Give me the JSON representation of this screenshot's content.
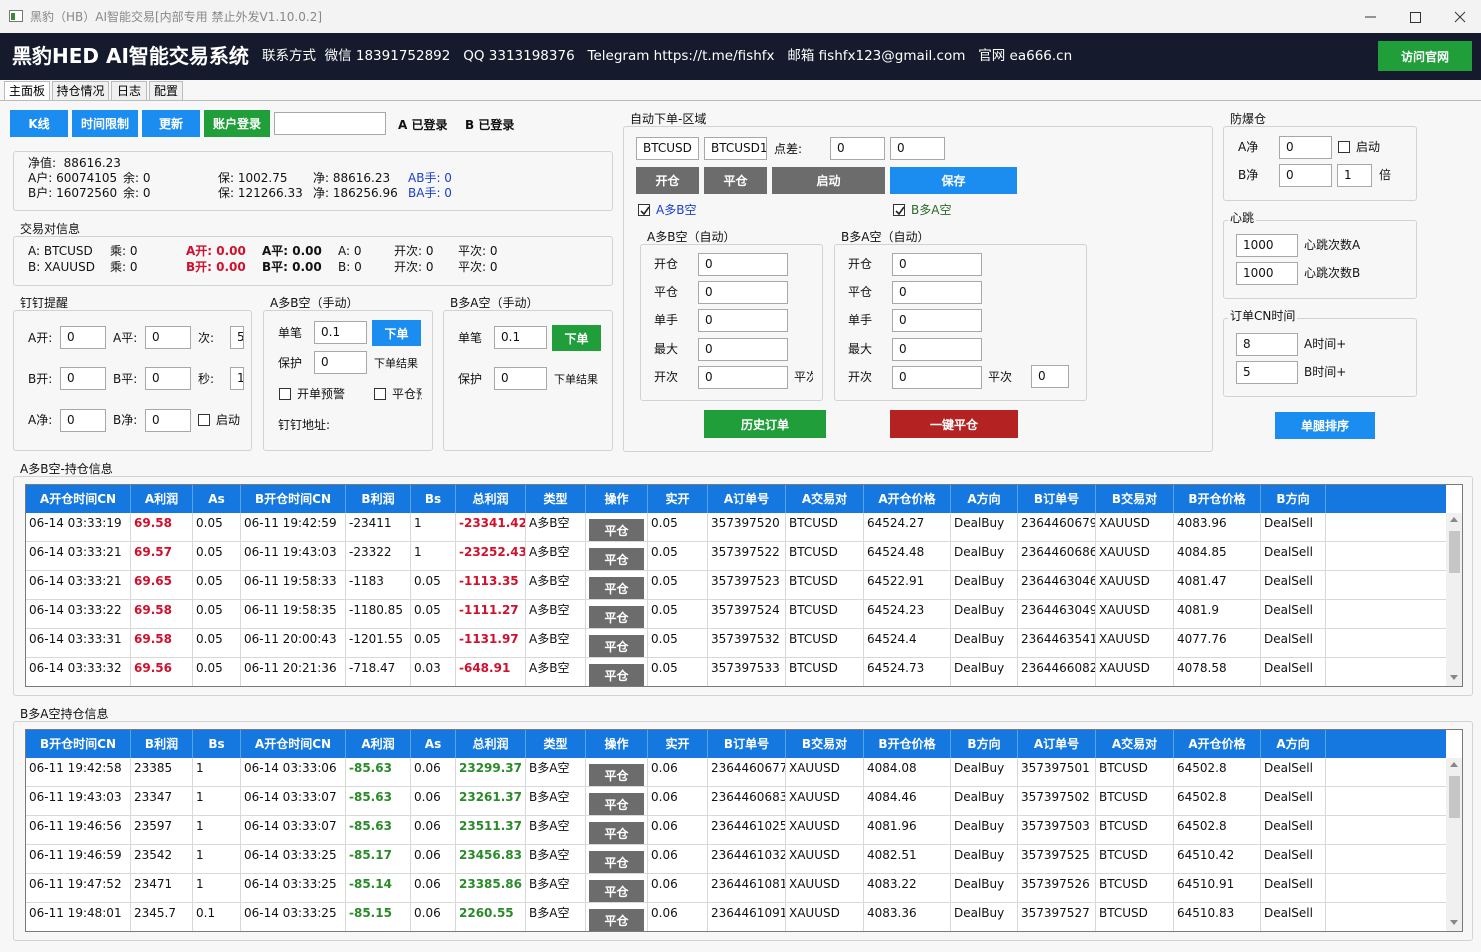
{
  "window": {
    "title": "黑豹（HB）AI智能交易[内部专用 禁止外发V1.10.0.2]"
  },
  "header": {
    "title": "黑豹HED AI智能交易系统",
    "contact": "联系方式  微信 18391752892   QQ 3313198376   Telegram https://t.me/fishfx   邮箱 fishfx123@gmail.com   官网 ea666.cn",
    "button": "访问官网"
  },
  "tabs": [
    "主面板",
    "持仓情况",
    "日志",
    "配置"
  ],
  "toolbar": {
    "buttons": [
      "K线",
      "时间限制",
      "更新",
      "账户登录"
    ],
    "status_a": "A 已登录",
    "status_b": "B 已登录"
  },
  "account": {
    "net": "净值:  88616.23",
    "rows": [
      [
        "A户: 60074105",
        "余: 0",
        "保: 1002.75",
        "净: 88616.23",
        "AB手: 0"
      ],
      [
        "B户: 16072560",
        "余: 0",
        "保: 121266.33",
        "净: 186256.96",
        "BA手: 0"
      ]
    ]
  },
  "pair_info": {
    "title": "交易对信息",
    "rows": [
      [
        "A: BTCUSD",
        "乘: 0",
        "A开: 0.00",
        "A平: 0.00",
        "A: 0",
        "开次: 0",
        "平次: 0"
      ],
      [
        "B: XAUUSD",
        "乘: 0",
        "B开: 0.00",
        "B平: 0.00",
        "B: 0",
        "开次: 0",
        "平次: 0"
      ]
    ]
  },
  "dingding": {
    "title": "钉钉提醒",
    "fields": [
      {
        "label": "A开:",
        "value": "0"
      },
      {
        "label": "A平:",
        "value": "0"
      },
      {
        "label": "次:",
        "value": "5"
      },
      {
        "label": "B开:",
        "value": "0"
      },
      {
        "label": "B平:",
        "value": "0"
      },
      {
        "label": "秒:",
        "value": "1"
      },
      {
        "label": "A净:",
        "value": "0"
      },
      {
        "label": "B净:",
        "value": "0"
      }
    ],
    "check": "启动"
  },
  "manual_ab": {
    "title": "A多B空（手动）",
    "lot_label": "单笔",
    "lot": "0.1",
    "button": "下单",
    "protect_label": "保护",
    "protect": "0",
    "result_label": "下单结果",
    "check1": "开单预警",
    "check2": "平仓预",
    "address_label": "钉钉地址:"
  },
  "manual_ba": {
    "title": "B多A空（手动）",
    "lot_label": "单笔",
    "lot": "0.1",
    "button": "下单",
    "protect_label": "保护",
    "protect": "0",
    "result_label": "下单结果"
  },
  "auto": {
    "title": "自动下单-区域",
    "symbol_a": "BTCUSD",
    "symbol_b": "BTCUSD1",
    "spread_label": "点差:",
    "spread1": "0",
    "spread2": "0",
    "buttons": [
      "开仓",
      "平仓",
      "启动",
      "保存"
    ],
    "check_ab": "A多B空",
    "check_ba": "B多A空",
    "ab": {
      "title": "A多B空（自动）",
      "fields": [
        {
          "label": "开仓",
          "value": "0"
        },
        {
          "label": "平仓",
          "value": "0"
        },
        {
          "label": "单手",
          "value": "0"
        },
        {
          "label": "最大",
          "value": "0"
        },
        {
          "label": "开次",
          "value": "0"
        }
      ],
      "extra_label": "平次"
    },
    "ba": {
      "title": "B多A空（自动）",
      "fields": [
        {
          "label": "开仓",
          "value": "0"
        },
        {
          "label": "平仓",
          "value": "0"
        },
        {
          "label": "单手",
          "value": "0"
        },
        {
          "label": "最大",
          "value": "0"
        },
        {
          "label": "开次",
          "value": "0"
        }
      ],
      "extra_label": "平次",
      "extra_value": "0"
    },
    "history": "历史订单",
    "close_all": "一键平仓"
  },
  "anti": {
    "title": "防爆仓",
    "a_label": "A净",
    "a": "0",
    "start": "启动",
    "b_label": "B净",
    "b": "0",
    "mult": "1",
    "mult_label": "倍"
  },
  "heartbeat": {
    "title": "心跳",
    "rows": [
      {
        "value": "1000",
        "label": "心跳次数A"
      },
      {
        "value": "1000",
        "label": "心跳次数B"
      }
    ]
  },
  "cn_time": {
    "title": "订单CN时间",
    "rows": [
      {
        "value": "8",
        "label": "A时间+"
      },
      {
        "value": "5",
        "label": "B时间+"
      }
    ]
  },
  "sort_button": "单腿排序",
  "table_ab": {
    "title": "A多B空-持仓信息",
    "headers": [
      "A开仓时间CN",
      "A利润",
      "As",
      "B开仓时间CN",
      "B利润",
      "Bs",
      "总利润",
      "类型",
      "操作",
      "实开",
      "A订单号",
      "A交易对",
      "A开仓价格",
      "A方向",
      "B订单号",
      "B交易对",
      "B开仓价格",
      "B方向"
    ],
    "rows": [
      [
        "06-14 03:33:19",
        "69.58",
        "0.05",
        "06-11 19:42:59",
        "-23411",
        "1",
        "-23341.42",
        "A多B空",
        "平仓",
        "0.05",
        "357397520",
        "BTCUSD",
        "64524.27",
        "DealBuy",
        "2364460679",
        "XAUUSD",
        "4083.96",
        "DealSell"
      ],
      [
        "06-14 03:33:21",
        "69.57",
        "0.05",
        "06-11 19:43:03",
        "-23322",
        "1",
        "-23252.43",
        "A多B空",
        "平仓",
        "0.05",
        "357397522",
        "BTCUSD",
        "64524.48",
        "DealBuy",
        "2364460686",
        "XAUUSD",
        "4084.85",
        "DealSell"
      ],
      [
        "06-14 03:33:21",
        "69.65",
        "0.05",
        "06-11 19:58:33",
        "-1183",
        "0.05",
        "-1113.35",
        "A多B空",
        "平仓",
        "0.05",
        "357397523",
        "BTCUSD",
        "64522.91",
        "DealBuy",
        "2364463046",
        "XAUUSD",
        "4081.47",
        "DealSell"
      ],
      [
        "06-14 03:33:22",
        "69.58",
        "0.05",
        "06-11 19:58:35",
        "-1180.85",
        "0.05",
        "-1111.27",
        "A多B空",
        "平仓",
        "0.05",
        "357397524",
        "BTCUSD",
        "64524.23",
        "DealBuy",
        "2364463049",
        "XAUUSD",
        "4081.9",
        "DealSell"
      ],
      [
        "06-14 03:33:31",
        "69.58",
        "0.05",
        "06-11 20:00:43",
        "-1201.55",
        "0.05",
        "-1131.97",
        "A多B空",
        "平仓",
        "0.05",
        "357397532",
        "BTCUSD",
        "64524.4",
        "DealBuy",
        "2364463541",
        "XAUUSD",
        "4077.76",
        "DealSell"
      ],
      [
        "06-14 03:33:32",
        "69.56",
        "0.05",
        "06-11 20:21:36",
        "-718.47",
        "0.03",
        "-648.91",
        "A多B空",
        "平仓",
        "0.05",
        "357397533",
        "BTCUSD",
        "64524.73",
        "DealBuy",
        "2364466082",
        "XAUUSD",
        "4078.58",
        "DealSell"
      ]
    ]
  },
  "table_ba": {
    "title": "B多A空持仓信息",
    "headers": [
      "B开仓时间CN",
      "B利润",
      "Bs",
      "A开仓时间CN",
      "A利润",
      "As",
      "总利润",
      "类型",
      "操作",
      "实开",
      "B订单号",
      "B交易对",
      "B开仓价格",
      "B方向",
      "A订单号",
      "A交易对",
      "A开仓价格",
      "A方向"
    ],
    "rows": [
      [
        "06-11 19:42:58",
        "23385",
        "1",
        "06-14 03:33:06",
        "-85.63",
        "0.06",
        "23299.37",
        "B多A空",
        "平仓",
        "0.06",
        "2364460677",
        "XAUUSD",
        "4084.08",
        "DealBuy",
        "357397501",
        "BTCUSD",
        "64502.8",
        "DealSell"
      ],
      [
        "06-11 19:43:03",
        "23347",
        "1",
        "06-14 03:33:07",
        "-85.63",
        "0.06",
        "23261.37",
        "B多A空",
        "平仓",
        "0.06",
        "2364460683",
        "XAUUSD",
        "4084.46",
        "DealBuy",
        "357397502",
        "BTCUSD",
        "64502.8",
        "DealSell"
      ],
      [
        "06-11 19:46:56",
        "23597",
        "1",
        "06-14 03:33:07",
        "-85.63",
        "0.06",
        "23511.37",
        "B多A空",
        "平仓",
        "0.06",
        "2364461025",
        "XAUUSD",
        "4081.96",
        "DealBuy",
        "357397503",
        "BTCUSD",
        "64502.8",
        "DealSell"
      ],
      [
        "06-11 19:46:59",
        "23542",
        "1",
        "06-14 03:33:25",
        "-85.17",
        "0.06",
        "23456.83",
        "B多A空",
        "平仓",
        "0.06",
        "2364461032",
        "XAUUSD",
        "4082.51",
        "DealBuy",
        "357397525",
        "BTCUSD",
        "64510.42",
        "DealSell"
      ],
      [
        "06-11 19:47:52",
        "23471",
        "1",
        "06-14 03:33:25",
        "-85.14",
        "0.06",
        "23385.86",
        "B多A空",
        "平仓",
        "0.06",
        "2364461081",
        "XAUUSD",
        "4083.22",
        "DealBuy",
        "357397526",
        "BTCUSD",
        "64510.91",
        "DealSell"
      ],
      [
        "06-11 19:48:01",
        "2345.7",
        "0.1",
        "06-14 03:33:25",
        "-85.15",
        "0.06",
        "2260.55",
        "B多A空",
        "平仓",
        "0.06",
        "2364461091",
        "XAUUSD",
        "4083.36",
        "DealBuy",
        "357397527",
        "BTCUSD",
        "64510.83",
        "DealSell"
      ]
    ]
  }
}
